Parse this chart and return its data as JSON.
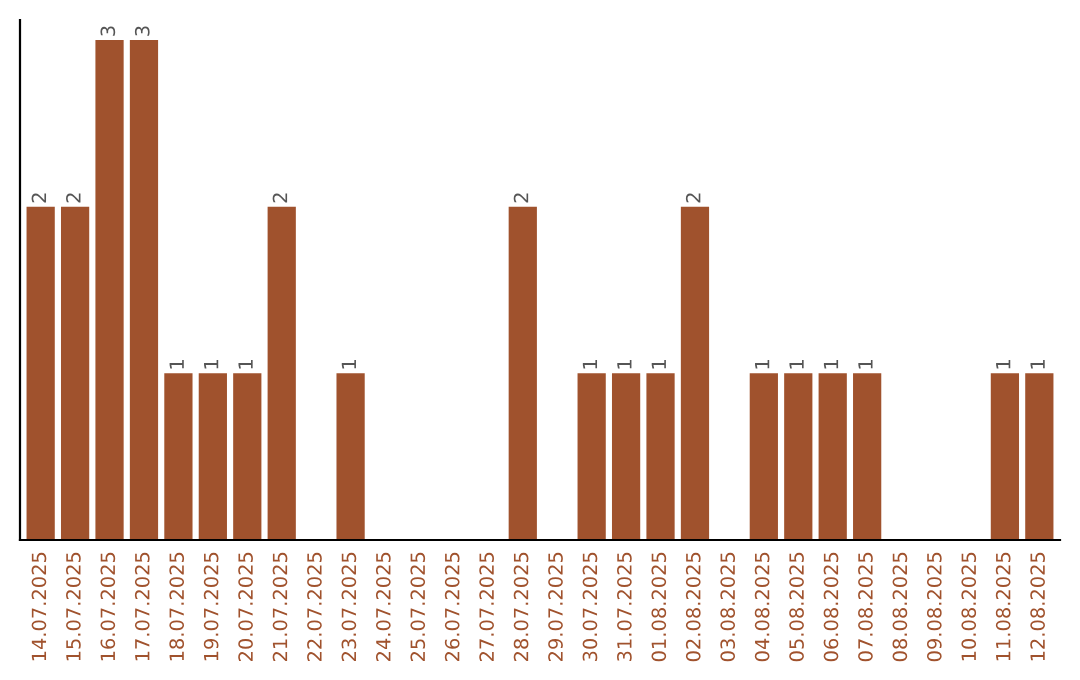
{
  "chart_data": {
    "type": "bar",
    "categories": [
      "14.07.2025",
      "15.07.2025",
      "16.07.2025",
      "17.07.2025",
      "18.07.2025",
      "19.07.2025",
      "20.07.2025",
      "21.07.2025",
      "22.07.2025",
      "23.07.2025",
      "24.07.2025",
      "25.07.2025",
      "26.07.2025",
      "27.07.2025",
      "28.07.2025",
      "29.07.2025",
      "30.07.2025",
      "31.07.2025",
      "01.08.2025",
      "02.08.2025",
      "03.08.2025",
      "04.08.2025",
      "05.08.2025",
      "06.08.2025",
      "07.08.2025",
      "08.08.2025",
      "09.08.2025",
      "10.08.2025",
      "11.08.2025",
      "12.08.2025"
    ],
    "values": [
      2,
      2,
      3,
      3,
      1,
      1,
      1,
      2,
      0,
      1,
      0,
      0,
      0,
      0,
      2,
      0,
      1,
      1,
      1,
      2,
      0,
      1,
      1,
      1,
      1,
      0,
      0,
      0,
      1,
      1
    ],
    "value_labels": [
      "2",
      "2",
      "3",
      "3",
      "1",
      "1",
      "1",
      "2",
      null,
      "1",
      null,
      null,
      null,
      null,
      "2",
      null,
      "1",
      "1",
      "1",
      "2",
      null,
      "1",
      "1",
      "1",
      "1",
      null,
      null,
      null,
      "1",
      "1"
    ],
    "color": "#a0522d",
    "grid": false,
    "legend": false
  }
}
